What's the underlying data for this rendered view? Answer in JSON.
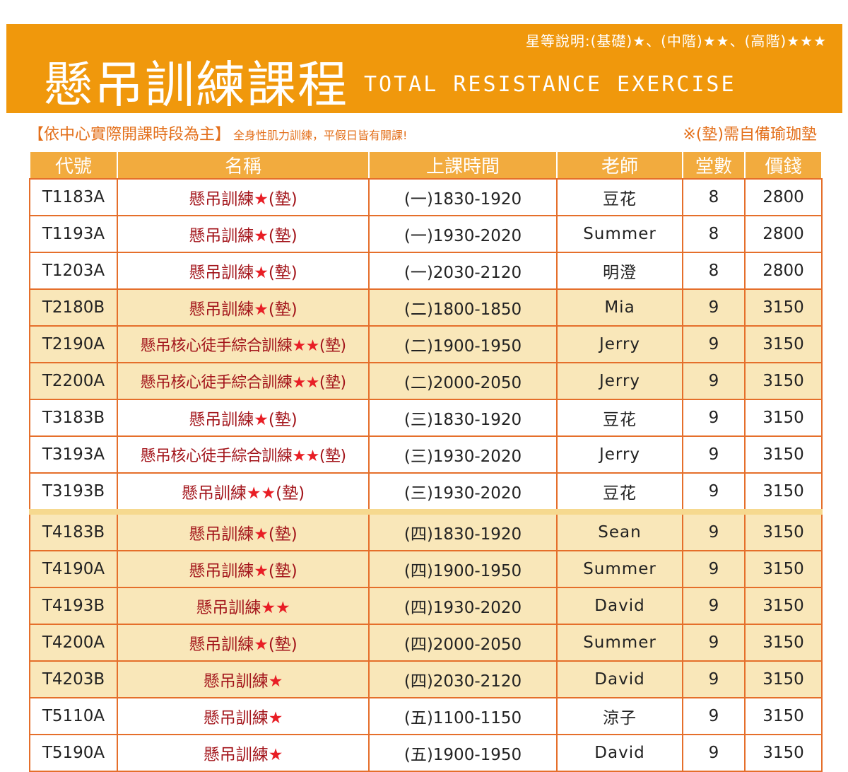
{
  "header": {
    "star_legend_prefix": "星等說明:",
    "star_legend_basic": "(基礎)",
    "star_legend_mid": "(中階)",
    "star_legend_adv": "(高階)",
    "star1": "★",
    "star2": "★★",
    "star3": "★★★",
    "sep": "、",
    "title_zh": "懸吊訓練課程",
    "title_en": "TOTAL RESISTANCE EXERCISE",
    "accent_color": "#f0980c"
  },
  "notice": {
    "bracket_text": "【依中心實際開課時段為主】",
    "detail_text": "全身性肌力訓練，平假日皆有開課!",
    "mat_note": "※(墊)需自備瑜珈墊"
  },
  "table": {
    "headers": [
      "代號",
      "名稱",
      "上課時間",
      "老師",
      "堂數",
      "價錢"
    ],
    "rows": [
      {
        "code": "T1183A",
        "name": "懸吊訓練",
        "stars": "★",
        "mat": "(墊)",
        "time": "(一)1830-1920",
        "teacher": "豆花",
        "sessions": "8",
        "price": "2800",
        "band": "white"
      },
      {
        "code": "T1193A",
        "name": "懸吊訓練",
        "stars": "★",
        "mat": "(墊)",
        "time": "(一)1930-2020",
        "teacher": "Summer",
        "sessions": "8",
        "price": "2800",
        "band": "white"
      },
      {
        "code": "T1203A",
        "name": "懸吊訓練",
        "stars": "★",
        "mat": "(墊)",
        "time": "(一)2030-2120",
        "teacher": "明澄",
        "sessions": "8",
        "price": "2800",
        "band": "white"
      },
      {
        "code": "T2180B",
        "name": "懸吊訓練",
        "stars": "★",
        "mat": "(墊)",
        "time": "(二)1800-1850",
        "teacher": "Mia",
        "sessions": "9",
        "price": "3150",
        "band": "cream"
      },
      {
        "code": "T2190A",
        "name": "懸吊核心徒手綜合訓練",
        "stars": "★★",
        "mat": "(墊)",
        "time": "(二)1900-1950",
        "teacher": "Jerry",
        "sessions": "9",
        "price": "3150",
        "band": "cream"
      },
      {
        "code": "T2200A",
        "name": "懸吊核心徒手綜合訓練",
        "stars": "★★",
        "mat": "(墊)",
        "time": "(二)2000-2050",
        "teacher": "Jerry",
        "sessions": "9",
        "price": "3150",
        "band": "cream"
      },
      {
        "code": "T3183B",
        "name": "懸吊訓練",
        "stars": "★",
        "mat": "(墊)",
        "time": "(三)1830-1920",
        "teacher": "豆花",
        "sessions": "9",
        "price": "3150",
        "band": "white"
      },
      {
        "code": "T3193A",
        "name": "懸吊核心徒手綜合訓練",
        "stars": "★★",
        "mat": "(墊)",
        "time": "(三)1930-2020",
        "teacher": "Jerry",
        "sessions": "9",
        "price": "3150",
        "band": "white"
      },
      {
        "code": "T3193B",
        "name": "懸吊訓練",
        "stars": "★★",
        "mat": "(墊)",
        "time": "(三)1930-2020",
        "teacher": "豆花",
        "sessions": "9",
        "price": "3150",
        "band": "white"
      },
      {
        "code": "T4183B",
        "name": "懸吊訓練",
        "stars": "★",
        "mat": "(墊)",
        "time": "(四)1830-1920",
        "teacher": "Sean",
        "sessions": "9",
        "price": "3150",
        "band": "cream"
      },
      {
        "code": "T4190A",
        "name": "懸吊訓練",
        "stars": "★",
        "mat": "(墊)",
        "time": "(四)1900-1950",
        "teacher": "Summer",
        "sessions": "9",
        "price": "3150",
        "band": "cream"
      },
      {
        "code": "T4193B",
        "name": "懸吊訓練",
        "stars": "★★",
        "mat": "",
        "time": "(四)1930-2020",
        "teacher": "David",
        "sessions": "9",
        "price": "3150",
        "band": "cream"
      },
      {
        "code": "T4200A",
        "name": "懸吊訓練",
        "stars": "★",
        "mat": "(墊)",
        "time": "(四)2000-2050",
        "teacher": "Summer",
        "sessions": "9",
        "price": "3150",
        "band": "cream"
      },
      {
        "code": "T4203B",
        "name": "懸吊訓練",
        "stars": "★",
        "mat": "",
        "time": "(四)2030-2120",
        "teacher": "David",
        "sessions": "9",
        "price": "3150",
        "band": "cream"
      },
      {
        "code": "T5110A",
        "name": "懸吊訓練",
        "stars": "★",
        "mat": "",
        "time": "(五)1100-1150",
        "teacher": "涼子",
        "sessions": "9",
        "price": "3150",
        "band": "white"
      },
      {
        "code": "T5190A",
        "name": "懸吊訓練",
        "stars": "★",
        "mat": "",
        "time": "(五)1900-1950",
        "teacher": "David",
        "sessions": "9",
        "price": "3150",
        "band": "white"
      }
    ]
  }
}
